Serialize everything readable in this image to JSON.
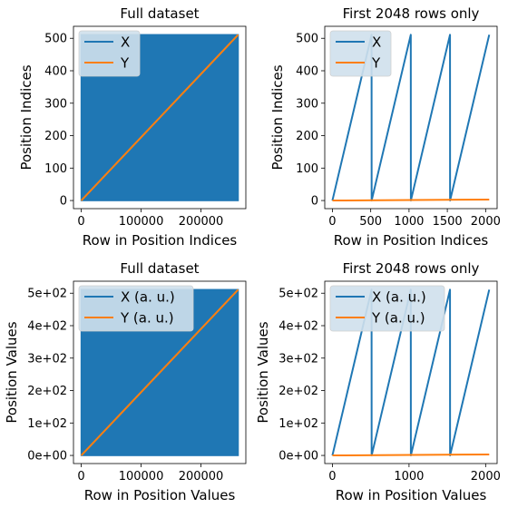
{
  "colors": {
    "x_series": "#1f77b4",
    "y_series": "#ff7f0e",
    "legend_bg": "#cfe0ec"
  },
  "chart_data": [
    {
      "type": "line",
      "title": "Full dataset",
      "xlabel": "Row in Position Indices",
      "ylabel": "Position Indices",
      "xlim": [
        -13000,
        275000
      ],
      "ylim": [
        -25,
        537
      ],
      "xticks": [
        0,
        100000,
        200000
      ],
      "xtick_labels": [
        "0",
        "100000",
        "200000"
      ],
      "yticks": [
        0,
        100,
        200,
        300,
        400,
        500
      ],
      "ytick_labels": [
        "0",
        "100",
        "200",
        "300",
        "400",
        "500"
      ],
      "legend_position": "top-left",
      "series": [
        {
          "name": "X",
          "style": "dense-band",
          "x": [
            0,
            262144
          ],
          "y_range": [
            0,
            511
          ]
        },
        {
          "name": "Y",
          "x": [
            0,
            262144
          ],
          "y": [
            0,
            511
          ]
        }
      ]
    },
    {
      "type": "line",
      "title": "First 2048 rows only",
      "xlabel": "Row in Position Indices",
      "ylabel": "Position Indices",
      "xlim": [
        -100,
        2150
      ],
      "ylim": [
        -25,
        537
      ],
      "xticks": [
        0,
        500,
        1000,
        1500,
        2000
      ],
      "xtick_labels": [
        "0",
        "500",
        "1000",
        "1500",
        "2000"
      ],
      "yticks": [
        0,
        100,
        200,
        300,
        400,
        500
      ],
      "ytick_labels": [
        "0",
        "100",
        "200",
        "300",
        "400",
        "500"
      ],
      "legend_position": "top-left",
      "series": [
        {
          "name": "X",
          "x": [
            0,
            511,
            512,
            1023,
            1024,
            1535,
            1536,
            2047
          ],
          "y": [
            0,
            511,
            0,
            511,
            0,
            511,
            0,
            511
          ]
        },
        {
          "name": "Y",
          "x": [
            0,
            2047
          ],
          "y": [
            0,
            3
          ]
        }
      ]
    },
    {
      "type": "line",
      "title": "Full dataset",
      "xlabel": "Row in Position Values",
      "ylabel": "Position Values",
      "xlim": [
        -13000,
        275000
      ],
      "ylim": [
        -25,
        537
      ],
      "xticks": [
        0,
        100000,
        200000
      ],
      "xtick_labels": [
        "0",
        "100000",
        "200000"
      ],
      "yticks": [
        0,
        100,
        200,
        300,
        400,
        500
      ],
      "ytick_labels": [
        "0e+00",
        "1e+02",
        "2e+02",
        "3e+02",
        "4e+02",
        "5e+02"
      ],
      "legend_position": "top-left",
      "series": [
        {
          "name": "X (a. u.)",
          "style": "dense-band",
          "x": [
            0,
            262144
          ],
          "y_range": [
            0,
            511
          ]
        },
        {
          "name": "Y (a. u.)",
          "x": [
            0,
            262144
          ],
          "y": [
            0,
            511
          ]
        }
      ]
    },
    {
      "type": "line",
      "title": "First 2048 rows only",
      "xlabel": "Row in Position Values",
      "ylabel": "Position Values",
      "xlim": [
        -100,
        2150
      ],
      "ylim": [
        -25,
        537
      ],
      "xticks": [
        0,
        1000,
        2000
      ],
      "xtick_labels": [
        "0",
        "1000",
        "2000"
      ],
      "yticks": [
        0,
        100,
        200,
        300,
        400,
        500
      ],
      "ytick_labels": [
        "0e+00",
        "1e+02",
        "2e+02",
        "3e+02",
        "4e+02",
        "5e+02"
      ],
      "legend_position": "top-left",
      "series": [
        {
          "name": "X (a. u.)",
          "x": [
            0,
            511,
            512,
            1023,
            1024,
            1535,
            1536,
            2047
          ],
          "y": [
            0,
            511,
            0,
            511,
            0,
            511,
            0,
            511
          ]
        },
        {
          "name": "Y (a. u.)",
          "x": [
            0,
            2047
          ],
          "y": [
            0,
            3
          ]
        }
      ]
    }
  ]
}
